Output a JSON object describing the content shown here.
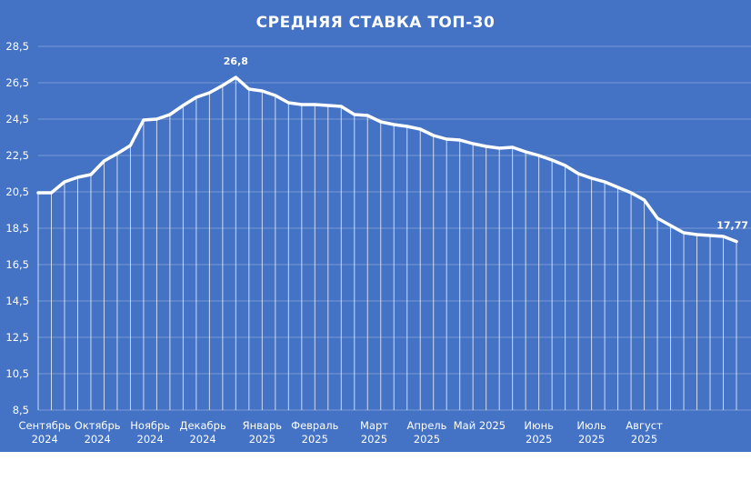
{
  "chart_data": {
    "type": "line",
    "title": "СРЕДНЯЯ СТАВКА ТОП-30",
    "xlabel": "",
    "ylabel": "",
    "ylim": [
      8.5,
      28.5
    ],
    "yticks": [
      "8,5",
      "10,5",
      "12,5",
      "14,5",
      "16,5",
      "18,5",
      "20,5",
      "22,5",
      "24,5",
      "26,5",
      "28,5"
    ],
    "grid": true,
    "legend": "none",
    "month_labels": [
      {
        "line1": "Сентябрь",
        "line2": "2024",
        "index": 0.5
      },
      {
        "line1": "Октябрь",
        "line2": "2024",
        "index": 4.5
      },
      {
        "line1": "Ноябрь",
        "line2": "2024",
        "index": 8.5
      },
      {
        "line1": "Декабрь",
        "line2": "2024",
        "index": 12.5
      },
      {
        "line1": "Январь",
        "line2": "2025",
        "index": 17
      },
      {
        "line1": "Февраль",
        "line2": "2025",
        "index": 21
      },
      {
        "line1": "Март",
        "line2": "2025",
        "index": 25.5
      },
      {
        "line1": "Апрель",
        "line2": "2025",
        "index": 29.5
      },
      {
        "line1": "Май 2025",
        "line2": "",
        "index": 33.5
      },
      {
        "line1": "Июнь",
        "line2": "2025",
        "index": 38
      },
      {
        "line1": "Июль",
        "line2": "2025",
        "index": 42
      },
      {
        "line1": "Август",
        "line2": "2025",
        "index": 46
      }
    ],
    "series": [
      {
        "values": [
          20.45,
          20.45,
          21.05,
          21.3,
          21.45,
          22.2,
          22.6,
          23.05,
          24.45,
          24.5,
          24.75,
          25.25,
          25.7,
          25.95,
          26.35,
          26.8,
          26.15,
          26.05,
          25.8,
          25.4,
          25.3,
          25.3,
          25.25,
          25.2,
          24.75,
          24.7,
          24.35,
          24.2,
          24.1,
          23.95,
          23.6,
          23.4,
          23.35,
          23.15,
          23.0,
          22.9,
          22.95,
          22.7,
          22.5,
          22.25,
          21.95,
          21.5,
          21.25,
          21.05,
          20.75,
          20.45,
          20.05,
          19.05,
          18.65,
          18.25,
          18.15,
          18.1,
          18.05,
          17.77
        ],
        "color": "#ffffff"
      }
    ],
    "data_labels": [
      {
        "index": 15,
        "text": "26,8"
      },
      {
        "index": 53,
        "text": "17,77"
      }
    ]
  }
}
